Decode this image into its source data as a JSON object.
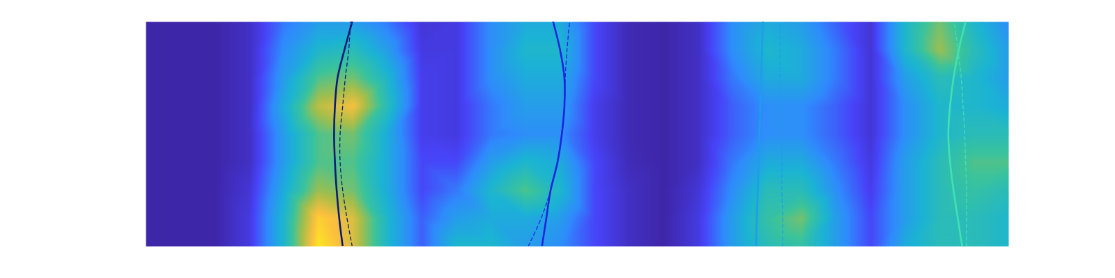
{
  "chart_data": {
    "type": "heatmap",
    "xlim": [
      0,
      100
    ],
    "ylim": [
      0,
      26
    ],
    "tick_labels": false,
    "zlim": [
      0,
      1
    ],
    "cells": {
      "x": [
        0,
        4,
        8,
        12,
        16,
        20,
        24,
        28,
        32,
        36,
        40,
        44,
        48,
        52,
        56,
        60,
        64,
        68,
        72,
        76,
        80,
        84,
        88,
        92,
        96,
        100
      ],
      "y": [
        0,
        3.25,
        6.5,
        9.75,
        13,
        16.25,
        19.5,
        22.75,
        26
      ],
      "z": [
        [
          0,
          0,
          0,
          0.1,
          0.45,
          0.95,
          0.8,
          0.45,
          0.2,
          0.45,
          0.45,
          0.35,
          0.3,
          0.15,
          0.05,
          0,
          0.1,
          0.35,
          0.5,
          0.55,
          0.35,
          0.15,
          0.4,
          0.5,
          0.5,
          0.45
        ],
        [
          0,
          0,
          0,
          0.1,
          0.45,
          0.9,
          0.8,
          0.45,
          0.2,
          0.35,
          0.4,
          0.4,
          0.35,
          0.15,
          0.05,
          0,
          0.1,
          0.35,
          0.55,
          0.65,
          0.35,
          0.15,
          0.35,
          0.5,
          0.5,
          0.45
        ],
        [
          0,
          0,
          0,
          0.08,
          0.4,
          0.7,
          0.65,
          0.4,
          0.15,
          0.25,
          0.45,
          0.6,
          0.45,
          0.15,
          0.05,
          0,
          0.08,
          0.3,
          0.5,
          0.5,
          0.3,
          0.12,
          0.35,
          0.5,
          0.55,
          0.5
        ],
        [
          0,
          0,
          0,
          0.05,
          0.35,
          0.6,
          0.6,
          0.4,
          0.15,
          0.15,
          0.35,
          0.45,
          0.4,
          0.15,
          0.03,
          0,
          0.05,
          0.25,
          0.4,
          0.4,
          0.25,
          0.1,
          0.35,
          0.5,
          0.6,
          0.6
        ],
        [
          0,
          0,
          0,
          0.05,
          0.35,
          0.6,
          0.65,
          0.4,
          0.12,
          0.1,
          0.25,
          0.3,
          0.3,
          0.12,
          0.02,
          0,
          0.05,
          0.2,
          0.3,
          0.3,
          0.2,
          0.08,
          0.3,
          0.45,
          0.5,
          0.5
        ],
        [
          0,
          0,
          0,
          0.05,
          0.4,
          0.75,
          0.85,
          0.5,
          0.12,
          0.1,
          0.25,
          0.35,
          0.35,
          0.12,
          0.02,
          0,
          0.05,
          0.2,
          0.3,
          0.3,
          0.2,
          0.08,
          0.3,
          0.45,
          0.45,
          0.4
        ],
        [
          0,
          0,
          0,
          0.05,
          0.35,
          0.6,
          0.65,
          0.45,
          0.12,
          0.1,
          0.3,
          0.4,
          0.4,
          0.15,
          0.02,
          0,
          0.05,
          0.25,
          0.4,
          0.4,
          0.25,
          0.08,
          0.35,
          0.5,
          0.45,
          0.35
        ],
        [
          0,
          0,
          0,
          0.05,
          0.3,
          0.45,
          0.5,
          0.35,
          0.1,
          0.1,
          0.3,
          0.45,
          0.45,
          0.15,
          0.02,
          0,
          0.05,
          0.3,
          0.45,
          0.4,
          0.25,
          0.08,
          0.45,
          0.7,
          0.5,
          0.35
        ],
        [
          0,
          0,
          0,
          0.05,
          0.25,
          0.35,
          0.35,
          0.25,
          0.08,
          0.1,
          0.3,
          0.4,
          0.4,
          0.15,
          0.02,
          0,
          0.05,
          0.3,
          0.4,
          0.35,
          0.2,
          0.08,
          0.45,
          0.65,
          0.45,
          0.3
        ]
      ]
    },
    "series": [
      {
        "color": "#0b1a78",
        "line_style": "solid",
        "x": [
          22.8,
          22.4,
          22.1,
          21.9,
          21.8,
          21.9,
          22.2,
          23.0,
          23.9
        ],
        "y": [
          0,
          3.25,
          6.5,
          9.75,
          13,
          16.25,
          19.5,
          22.75,
          26
        ]
      },
      {
        "color": "#0b1a78",
        "line_style": "dashed",
        "x": [
          23.9,
          23.3,
          22.8,
          22.5,
          22.5,
          22.8,
          23.1,
          23.5,
          23.7
        ],
        "y": [
          0,
          3.25,
          6.5,
          9.75,
          13,
          16.25,
          19.5,
          22.75,
          26
        ]
      },
      {
        "color": "#1b24e0",
        "line_style": "solid",
        "x": [
          45.9,
          46.4,
          46.9,
          47.7,
          48.2,
          48.5,
          48.5,
          48.0,
          47.2
        ],
        "y": [
          0,
          3.25,
          6.5,
          9.75,
          13,
          16.25,
          19.5,
          22.75,
          26
        ]
      },
      {
        "color": "#1b24e0",
        "line_style": "dashed",
        "x": [
          44.3,
          45.8,
          46.9,
          47.7,
          48.2,
          48.5,
          48.6,
          48.8,
          49.1
        ],
        "y": [
          0,
          3.25,
          6.5,
          9.75,
          13,
          16.25,
          19.5,
          22.75,
          26
        ]
      },
      {
        "color": "#1e9de8",
        "line_style": "solid",
        "x": [
          70.7,
          70.8,
          70.9,
          71.0,
          71.1,
          71.2,
          71.3,
          71.4,
          71.5
        ],
        "y": [
          0,
          3.25,
          6.5,
          9.75,
          13,
          16.25,
          19.5,
          22.75,
          26
        ]
      },
      {
        "color": "#1e9de8",
        "line_style": "dashed",
        "x": [
          73.8,
          73.8,
          73.7,
          73.7,
          73.6,
          73.6,
          73.5,
          73.5,
          73.5
        ],
        "y": [
          0,
          3.25,
          6.5,
          9.75,
          13,
          16.25,
          19.5,
          22.75,
          26
        ]
      },
      {
        "color": "#40e2b4",
        "line_style": "solid",
        "x": [
          94.6,
          94.1,
          93.6,
          93.2,
          93.0,
          93.2,
          93.6,
          94.2,
          95.0
        ],
        "y": [
          0,
          3.25,
          6.5,
          9.75,
          13,
          16.25,
          19.5,
          22.75,
          26
        ]
      },
      {
        "color": "#40e2b4",
        "line_style": "dashed",
        "x": [
          95.1,
          95.1,
          95.1,
          95.0,
          94.9,
          94.7,
          94.5,
          94.1,
          93.7
        ],
        "y": [
          0,
          3.25,
          6.5,
          9.75,
          13,
          16.25,
          19.5,
          22.75,
          26
        ]
      }
    ]
  }
}
